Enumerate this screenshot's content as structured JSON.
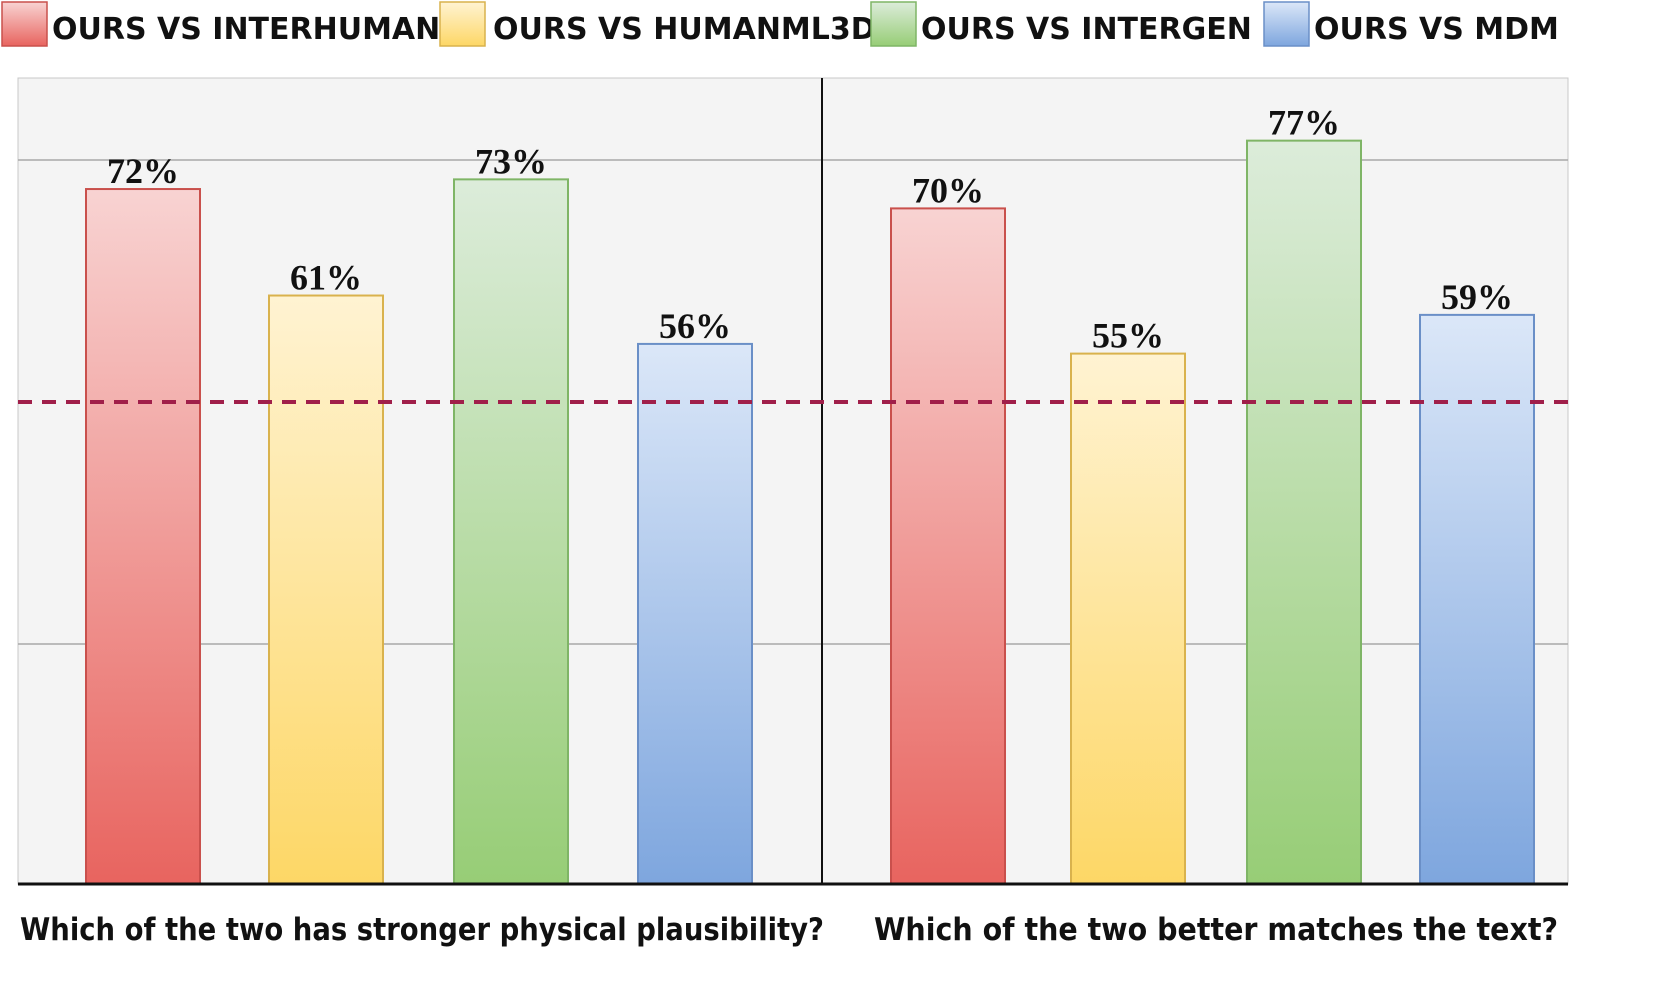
{
  "chart_data": {
    "type": "bar",
    "legend": [
      {
        "label": "OURS VS INTERHUMAN",
        "color": "#e8645f"
      },
      {
        "label": "OURS VS HUMANML3D",
        "color": "#fdd766"
      },
      {
        "label": "OURS VS INTERGEN",
        "color": "#97cd76"
      },
      {
        "label": "OURS VS MDM",
        "color": "#7ea6de"
      }
    ],
    "legend_position": "top",
    "panels": [
      {
        "question": "Which of the two has stronger physical plausibility?",
        "values": [
          72,
          61,
          73,
          56
        ],
        "labels": [
          "72%",
          "61%",
          "73%",
          "56%"
        ]
      },
      {
        "question": "Which of the two better matches the text?",
        "values": [
          70,
          55,
          77,
          59
        ],
        "labels": [
          "70%",
          "55%",
          "77%",
          "59%"
        ]
      }
    ],
    "ylim": [
      0,
      100
    ],
    "reference_line": 50,
    "gridlines": [
      25,
      75
    ],
    "grid": true,
    "colors": {
      "red": {
        "top": "#f8d3d2",
        "bottom": "#e8645f",
        "stroke": "#c9504c"
      },
      "yellow": {
        "top": "#fff3d2",
        "bottom": "#fdd766",
        "stroke": "#d9b24d"
      },
      "green": {
        "top": "#dcecda",
        "bottom": "#97cd76",
        "stroke": "#7fb566"
      },
      "blue": {
        "top": "#dbe7f8",
        "bottom": "#7ea6de",
        "stroke": "#6a8fc7"
      },
      "reference": "#a01f4a",
      "plot_bg": "#f4f4f4"
    }
  }
}
